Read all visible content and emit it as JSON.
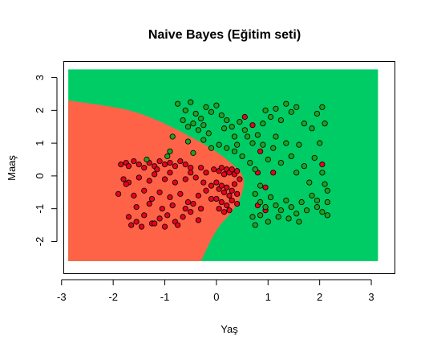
{
  "chart_data": {
    "type": "scatter",
    "title": "Naive Bayes (Eğitim seti)",
    "xlabel": "Yaş",
    "ylabel": "Maaş",
    "xlim": [
      -2.95,
      3.45
    ],
    "ylim": [
      -2.97,
      3.48
    ],
    "x_ticks": [
      -3,
      -2,
      -1,
      0,
      1,
      2,
      3
    ],
    "y_ticks": [
      -2,
      -1,
      0,
      1,
      2,
      3
    ],
    "grid": false,
    "legend": "none",
    "region": {
      "x_range": [
        -2.87,
        3.13
      ],
      "y_range": [
        -2.6,
        3.25
      ],
      "class0_color": "#FF6347",
      "class1_color": "#00CC66",
      "boundary": [
        [
          -2.87,
          2.3
        ],
        [
          -2.0,
          2.12
        ],
        [
          -1.5,
          1.93
        ],
        [
          -1.0,
          1.6
        ],
        [
          -0.5,
          1.2
        ],
        [
          0.0,
          0.75
        ],
        [
          0.3,
          0.38
        ],
        [
          0.55,
          0.0
        ],
        [
          0.5,
          -0.6
        ],
        [
          0.3,
          -1.12
        ],
        [
          0.0,
          -1.6
        ],
        [
          -0.3,
          -2.6
        ]
      ]
    },
    "series": [
      {
        "color": "#E8001C",
        "points": [
          [
            -1.85,
            0.35
          ],
          [
            -1.75,
            0.4
          ],
          [
            -1.7,
            0.3
          ],
          [
            -1.6,
            0.45
          ],
          [
            -1.5,
            0.35
          ],
          [
            -1.4,
            0.25
          ],
          [
            -1.3,
            0.4
          ],
          [
            -1.2,
            0.3
          ],
          [
            -1.1,
            0.45
          ],
          [
            -1.0,
            0.35
          ],
          [
            -0.9,
            0.4
          ],
          [
            -0.8,
            0.3
          ],
          [
            -0.7,
            0.45
          ],
          [
            -0.6,
            0.35
          ],
          [
            -0.5,
            0.25
          ],
          [
            -1.8,
            -0.1
          ],
          [
            -1.7,
            -0.2
          ],
          [
            -1.5,
            -0.05
          ],
          [
            -1.3,
            -0.15
          ],
          [
            -1.2,
            0.05
          ],
          [
            -1.0,
            -0.1
          ],
          [
            -0.8,
            -0.2
          ],
          [
            -0.6,
            -0.1
          ],
          [
            -0.5,
            0.1
          ],
          [
            -0.4,
            -0.05
          ],
          [
            -1.9,
            -0.55
          ],
          [
            -1.6,
            -0.6
          ],
          [
            -1.4,
            -0.45
          ],
          [
            -1.25,
            -0.7
          ],
          [
            -1.1,
            -0.5
          ],
          [
            -0.9,
            -0.65
          ],
          [
            -0.7,
            -0.55
          ],
          [
            -0.55,
            -0.8
          ],
          [
            -0.35,
            -0.6
          ],
          [
            -0.2,
            -0.45
          ],
          [
            -1.7,
            -1.25
          ],
          [
            -1.55,
            -1.4
          ],
          [
            -1.4,
            -1.2
          ],
          [
            -1.25,
            -1.45
          ],
          [
            -1.1,
            -1.3
          ],
          [
            -0.95,
            -1.2
          ],
          [
            -0.8,
            -1.4
          ],
          [
            -0.65,
            -1.25
          ],
          [
            -0.5,
            -1.1
          ],
          [
            -0.35,
            -1.35
          ],
          [
            -1.65,
            -1.5
          ],
          [
            -1.45,
            -1.55
          ],
          [
            -1.2,
            -1.45
          ],
          [
            -1.0,
            -1.55
          ],
          [
            -0.75,
            -1.5
          ],
          [
            -1.55,
            -0.95
          ],
          [
            -1.3,
            -0.85
          ],
          [
            -1.05,
            -1.0
          ],
          [
            -0.85,
            -0.9
          ],
          [
            -0.6,
            -1.0
          ],
          [
            -0.45,
            -0.85
          ],
          [
            -0.3,
            -1.0
          ],
          [
            -0.1,
            -0.7
          ],
          [
            -0.1,
            -0.3
          ],
          [
            -0.05,
            0.2
          ],
          [
            0.05,
            0.15
          ],
          [
            0.1,
            0.25
          ],
          [
            0.15,
            0.05
          ],
          [
            0.2,
            0.2
          ],
          [
            0.25,
            0.1
          ],
          [
            0.3,
            0.2
          ],
          [
            0.35,
            0.05
          ],
          [
            0.4,
            0.15
          ],
          [
            0.45,
            -0.1
          ],
          [
            0.0,
            -0.2
          ],
          [
            0.05,
            -0.4
          ],
          [
            0.1,
            -0.3
          ],
          [
            0.15,
            -0.5
          ],
          [
            0.2,
            -0.35
          ],
          [
            0.25,
            -0.6
          ],
          [
            0.3,
            -0.45
          ],
          [
            0.35,
            -0.25
          ],
          [
            0.4,
            -0.55
          ],
          [
            0.0,
            -0.7
          ],
          [
            0.1,
            -0.8
          ],
          [
            0.2,
            -0.9
          ],
          [
            0.3,
            -0.75
          ],
          [
            0.4,
            -0.85
          ],
          [
            0.05,
            -1.0
          ],
          [
            0.15,
            -1.1
          ],
          [
            0.25,
            -1.05
          ],
          [
            -0.2,
            0.1
          ],
          [
            -0.25,
            -0.2
          ],
          [
            -0.3,
            0.25
          ],
          [
            -0.9,
            0.1
          ],
          [
            -1.15,
            0.2
          ],
          [
            -1.75,
            -0.25
          ],
          [
            0.85,
            0.75
          ],
          [
            0.8,
            0.1
          ],
          [
            1.1,
            0.1
          ],
          [
            0.95,
            -0.35
          ],
          [
            2.05,
            0.35
          ],
          [
            0.55,
            1.8
          ],
          [
            0.7,
            1.55
          ],
          [
            0.8,
            -0.9
          ],
          [
            0.95,
            -1.05
          ]
        ]
      },
      {
        "color": "#1FA01F",
        "points": [
          [
            -0.75,
            2.2
          ],
          [
            -0.6,
            2.0
          ],
          [
            -0.5,
            2.25
          ],
          [
            -0.4,
            1.9
          ],
          [
            -0.3,
            1.75
          ],
          [
            -0.2,
            2.1
          ],
          [
            -0.1,
            1.95
          ],
          [
            0.0,
            2.15
          ],
          [
            0.1,
            1.85
          ],
          [
            -0.65,
            1.7
          ],
          [
            -0.55,
            1.5
          ],
          [
            -0.45,
            1.6
          ],
          [
            -0.35,
            1.4
          ],
          [
            -0.25,
            1.55
          ],
          [
            -0.15,
            1.3
          ],
          [
            0.2,
            1.7
          ],
          [
            0.3,
            1.5
          ],
          [
            0.35,
            1.2
          ],
          [
            0.45,
            1.65
          ],
          [
            0.55,
            1.4
          ],
          [
            0.6,
            1.2
          ],
          [
            0.7,
            1.0
          ],
          [
            0.8,
            1.25
          ],
          [
            0.9,
            1.6
          ],
          [
            0.95,
            2.0
          ],
          [
            1.05,
            1.8
          ],
          [
            1.15,
            2.05
          ],
          [
            1.25,
            1.7
          ],
          [
            1.35,
            2.2
          ],
          [
            1.45,
            1.95
          ],
          [
            1.55,
            2.1
          ],
          [
            1.7,
            1.6
          ],
          [
            1.85,
            1.45
          ],
          [
            1.95,
            1.9
          ],
          [
            2.05,
            2.1
          ],
          [
            2.1,
            1.6
          ],
          [
            -0.85,
            1.2
          ],
          [
            -0.9,
            0.75
          ],
          [
            -0.55,
            1.05
          ],
          [
            -0.45,
            0.7
          ],
          [
            -0.25,
            1.1
          ],
          [
            -0.1,
            0.85
          ],
          [
            0.05,
            0.95
          ],
          [
            0.2,
            0.85
          ],
          [
            0.35,
            0.75
          ],
          [
            0.5,
            0.6
          ],
          [
            0.65,
            0.4
          ],
          [
            0.75,
            0.2
          ],
          [
            0.85,
            -0.3
          ],
          [
            0.9,
            0.95
          ],
          [
            1.0,
            0.5
          ],
          [
            1.1,
            0.85
          ],
          [
            1.15,
            1.2
          ],
          [
            1.25,
            0.4
          ],
          [
            1.35,
            1.0
          ],
          [
            1.45,
            0.6
          ],
          [
            1.55,
            0.1
          ],
          [
            1.6,
            0.95
          ],
          [
            1.7,
            0.3
          ],
          [
            1.8,
            -0.2
          ],
          [
            1.9,
            0.55
          ],
          [
            2.0,
            1.0
          ],
          [
            2.05,
            0.1
          ],
          [
            2.1,
            -0.25
          ],
          [
            2.15,
            -0.45
          ],
          [
            1.95,
            -0.75
          ],
          [
            2.15,
            -0.8
          ],
          [
            0.75,
            -0.55
          ],
          [
            0.85,
            -0.8
          ],
          [
            0.95,
            -0.95
          ],
          [
            1.05,
            -0.65
          ],
          [
            1.15,
            -0.9
          ],
          [
            1.25,
            -1.05
          ],
          [
            1.35,
            -0.75
          ],
          [
            1.45,
            -0.95
          ],
          [
            1.55,
            -1.15
          ],
          [
            1.65,
            -0.8
          ],
          [
            1.75,
            -1.05
          ],
          [
            1.85,
            -0.6
          ],
          [
            1.95,
            -0.95
          ],
          [
            2.05,
            -1.1
          ],
          [
            2.15,
            -1.2
          ],
          [
            0.7,
            -1.25
          ],
          [
            0.85,
            -1.2
          ],
          [
            1.0,
            -1.4
          ],
          [
            0.75,
            -1.5
          ],
          [
            1.2,
            -1.25
          ],
          [
            1.4,
            -1.3
          ],
          [
            1.6,
            -1.4
          ],
          [
            -1.35,
            0.5
          ],
          [
            -0.95,
            0.6
          ],
          [
            0.4,
            0.95
          ],
          [
            0.15,
            1.45
          ]
        ]
      }
    ]
  }
}
